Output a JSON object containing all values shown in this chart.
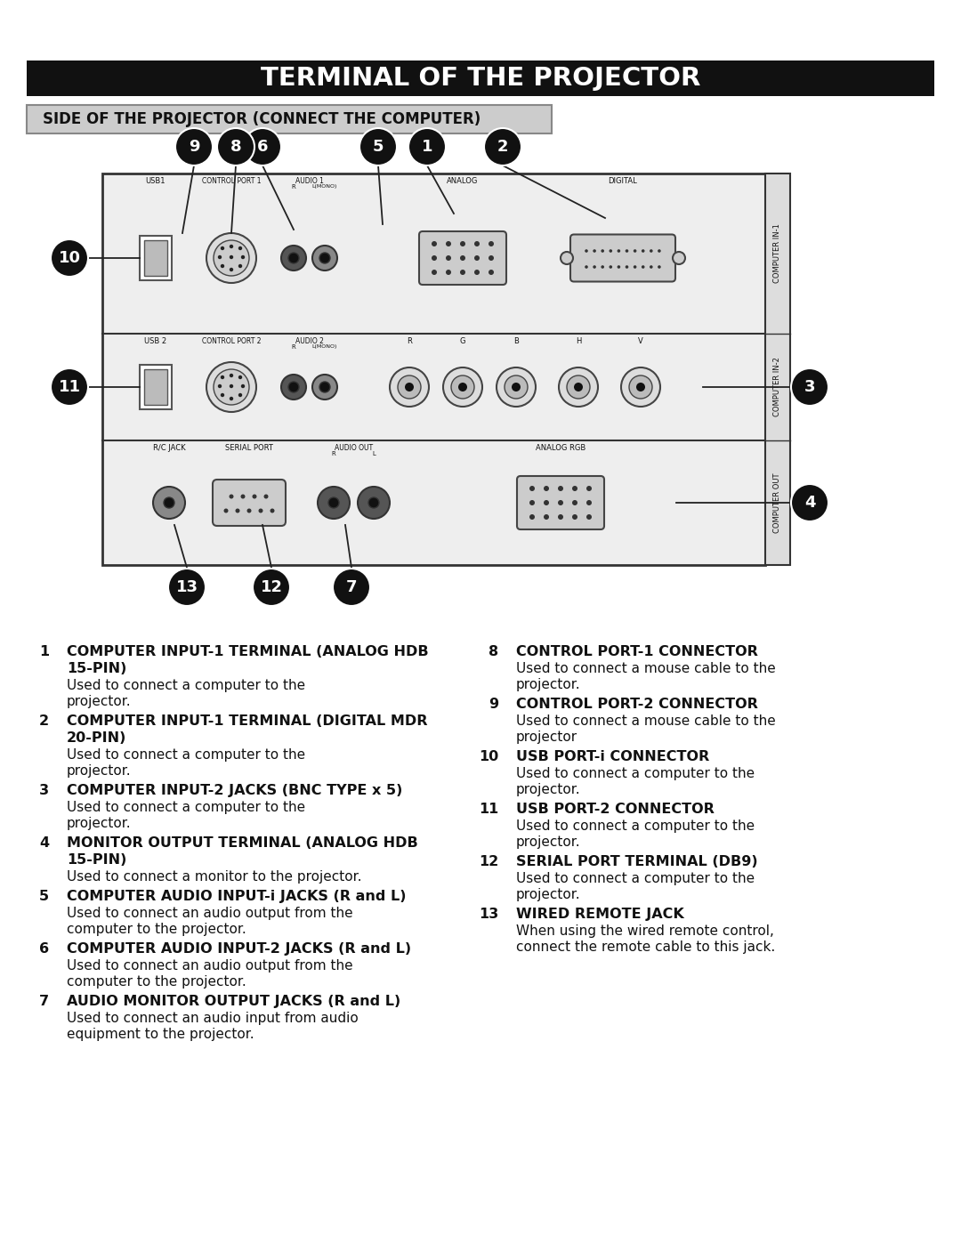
{
  "title": "TERMINAL OF THE PROJECTOR",
  "subtitle": "SIDE OF THE PROJECTOR (CONNECT THE COMPUTER)",
  "bg_color": "#ffffff",
  "title_bg": "#111111",
  "subtitle_bg": "#cccccc",
  "items_left": [
    {
      "num": "1",
      "bold": "COMPUTER INPUT-1 TERMINAL (ANALOG HDB 15-PIN)",
      "normal": "Used to connect a computer to the projector."
    },
    {
      "num": "2",
      "bold": "COMPUTER INPUT-1 TERMINAL (DIGITAL MDR 20-PIN)",
      "normal": "Used to connect a computer to the projector."
    },
    {
      "num": "3",
      "bold": "COMPUTER INPUT-2 JACKS (BNC TYPE x 5)",
      "normal": "Used to connect a computer to the projector."
    },
    {
      "num": "4",
      "bold": "MONITOR OUTPUT TERMINAL (ANALOG HDB 15-PIN)",
      "normal": "Used to connect a monitor to the projector."
    },
    {
      "num": "5",
      "bold": "COMPUTER AUDIO INPUT-i JACKS (R and L)",
      "normal": "Used to connect an audio output from the computer to the projector."
    },
    {
      "num": "6",
      "bold": "COMPUTER AUDIO INPUT-2 JACKS (R and L)",
      "normal": "Used to connect an audio output from the computer to the projector."
    },
    {
      "num": "7",
      "bold": "AUDIO MONITOR OUTPUT JACKS (R and L)",
      "normal": "Used to connect an audio input from audio equipment to the projector."
    }
  ],
  "items_right": [
    {
      "num": "8",
      "bold": "CONTROL PORT-1 CONNECTOR",
      "normal": "Used to connect a mouse cable to the projector."
    },
    {
      "num": "9",
      "bold": "CONTROL PORT-2 CONNECTOR",
      "normal": "Used to connect a mouse cable to the projector"
    },
    {
      "num": "10",
      "bold": "USB PORT-i CONNECTOR",
      "normal": "Used to connect a computer to the projector."
    },
    {
      "num": "11",
      "bold": "USB PORT-2 CONNECTOR",
      "normal": "Used to connect a computer to the projector."
    },
    {
      "num": "12",
      "bold": "SERIAL PORT TERMINAL (DB9)",
      "normal": "Used to connect a computer to the projector."
    },
    {
      "num": "13",
      "bold": "WIRED REMOTE JACK",
      "normal": "When using the wired remote control, connect the remote cable to this jack."
    }
  ]
}
